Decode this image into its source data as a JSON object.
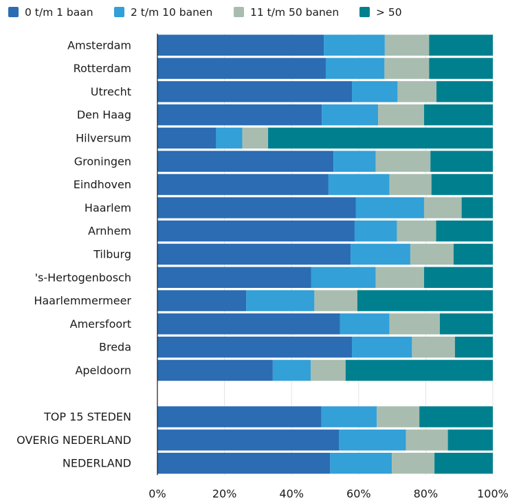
{
  "chart_data": {
    "type": "bar",
    "orientation": "horizontal",
    "stacked": true,
    "title": "",
    "xlabel": "",
    "ylabel": "",
    "xlim": [
      0,
      100
    ],
    "tick_values": [
      0,
      20,
      40,
      60,
      80,
      100
    ],
    "tick_labels": [
      "0%",
      "20%",
      "40%",
      "60%",
      "80%",
      "100%"
    ],
    "grid": true,
    "legend_position": "top",
    "categories": [
      "Amsterdam",
      "Rotterdam",
      "Utrecht",
      "Den Haag",
      "Hilversum",
      "Groningen",
      "Eindhoven",
      "Haarlem",
      "Arnhem",
      "Tilburg",
      "'s-Hertogenbosch",
      "Haarlemmermeer",
      "Amersfoort",
      "Breda",
      "Apeldoorn",
      "",
      "TOP 15 STEDEN",
      "OVERIG NEDERLAND",
      "NEDERLAND"
    ],
    "series": [
      {
        "name": "0 t/m 1 baan",
        "color": "#2b6cb3",
        "values": [
          49.6,
          50.2,
          58.0,
          49.0,
          17.5,
          52.5,
          51.0,
          59.2,
          58.8,
          57.6,
          45.8,
          26.5,
          54.4,
          58.0,
          34.4,
          null,
          48.9,
          54.1,
          51.5
        ]
      },
      {
        "name": "2 t/m 10 banen",
        "color": "#33a0d8",
        "values": [
          18.2,
          17.5,
          13.6,
          16.8,
          7.8,
          12.6,
          18.2,
          20.3,
          12.6,
          17.8,
          19.3,
          20.3,
          14.8,
          17.9,
          11.3,
          null,
          16.5,
          20.0,
          18.4
        ]
      },
      {
        "name": "11 t/m 50 banen",
        "color": "#a8bdaf",
        "values": [
          13.2,
          13.3,
          11.6,
          13.7,
          7.7,
          16.3,
          12.5,
          11.2,
          11.7,
          12.9,
          14.4,
          12.8,
          15.0,
          12.8,
          10.4,
          null,
          12.7,
          12.5,
          12.7
        ]
      },
      {
        "name": "> 50",
        "color": "#00808f",
        "values": [
          19.0,
          19.0,
          16.8,
          20.5,
          67.0,
          18.6,
          18.3,
          9.3,
          16.9,
          11.7,
          20.5,
          40.4,
          15.8,
          11.3,
          43.9,
          null,
          21.9,
          13.4,
          17.4
        ]
      }
    ]
  }
}
